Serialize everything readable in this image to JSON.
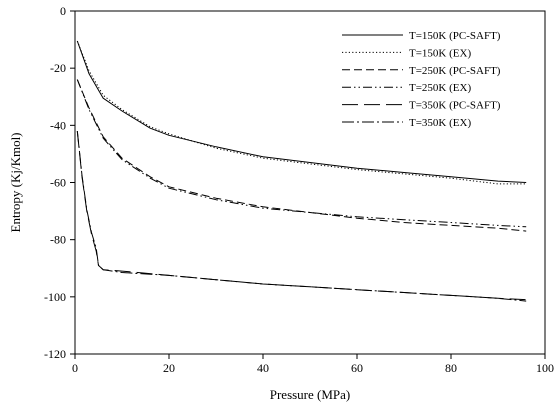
{
  "chart_data": {
    "type": "line",
    "title": "",
    "xlabel": "Pressure (MPa)",
    "ylabel": "Entropy (Kj/Kmol)",
    "xlim": [
      0,
      100
    ],
    "ylim": [
      -120,
      0
    ],
    "xticks": [
      0,
      20,
      40,
      60,
      80,
      100
    ],
    "yticks": [
      0,
      -20,
      -40,
      -60,
      -80,
      -100,
      -120
    ],
    "grid": false,
    "legend_position": "top-right",
    "series": [
      {
        "name": "T=150K (PC-SAFT)",
        "style": "solid",
        "x": [
          0.5,
          3,
          6,
          10,
          16,
          20,
          30,
          40,
          50,
          60,
          70,
          80,
          90,
          96
        ],
        "y": [
          -10.5,
          -22,
          -30.5,
          -35,
          -41,
          -43.5,
          -47.5,
          -51,
          -53,
          -55,
          -56.5,
          -58,
          -59.5,
          -60
        ]
      },
      {
        "name": "T=150K (EX)",
        "style": "dotted",
        "x": [
          0.5,
          3,
          6,
          10,
          16,
          20,
          30,
          40,
          50,
          60,
          70,
          80,
          90,
          96
        ],
        "y": [
          -10.5,
          -21,
          -29.5,
          -34.5,
          -40.5,
          -43,
          -48,
          -51.5,
          -53.5,
          -55.5,
          -57,
          -58.5,
          -60.5,
          -60.5
        ]
      },
      {
        "name": "T=250K (PC-SAFT)",
        "style": "dash",
        "x": [
          0.5,
          3,
          6,
          10,
          16,
          20,
          30,
          40,
          50,
          60,
          70,
          80,
          90,
          96
        ],
        "y": [
          -24,
          -34,
          -44,
          -51.5,
          -58,
          -61.5,
          -65.5,
          -68.5,
          -70.5,
          -72.5,
          -74,
          -75,
          -76,
          -77
        ]
      },
      {
        "name": "T=250K (EX)",
        "style": "dashdotdot",
        "x": [
          0.5,
          3,
          6,
          10,
          16,
          20,
          30,
          40,
          50,
          60,
          70,
          80,
          90,
          96
        ],
        "y": [
          -24,
          -34.5,
          -44.5,
          -52,
          -58.5,
          -62,
          -66,
          -69,
          -70.5,
          -72,
          -73,
          -74,
          -75,
          -75.5
        ]
      },
      {
        "name": "T=350K (PC-SAFT)",
        "style": "longdash",
        "x": [
          0.5,
          1.5,
          2.5,
          3.5,
          4.5,
          5,
          6,
          10,
          20,
          30,
          40,
          50,
          60,
          70,
          80,
          90,
          96
        ],
        "y": [
          -42,
          -58,
          -70,
          -78,
          -84,
          -89,
          -90.5,
          -91,
          -92.5,
          -94,
          -95.5,
          -96.5,
          -97.5,
          -98.5,
          -99.5,
          -100.5,
          -101
        ]
      },
      {
        "name": "T=350K (EX)",
        "style": "dashdot",
        "x": [
          0.5,
          1.5,
          2.5,
          3.5,
          4.5,
          5,
          6,
          10,
          20,
          30,
          40,
          50,
          60,
          70,
          80,
          90,
          96
        ],
        "y": [
          -42,
          -57.5,
          -69.5,
          -77.5,
          -83,
          -89,
          -90.5,
          -91.5,
          -92.5,
          -94,
          -95.5,
          -96.5,
          -97.5,
          -98.5,
          -99.5,
          -100.5,
          -101.5
        ]
      }
    ]
  }
}
